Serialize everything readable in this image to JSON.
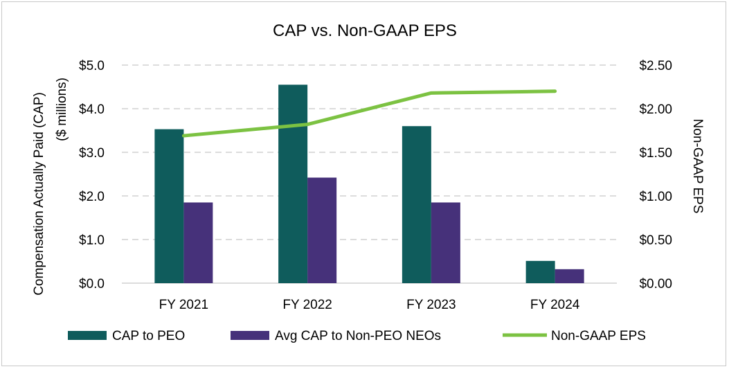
{
  "chart_data": {
    "type": "bar",
    "title": "CAP vs. Non-GAAP EPS",
    "categories": [
      "FY 2021",
      "FY 2022",
      "FY 2023",
      "FY 2024"
    ],
    "ylabel": "Compensation Actually Paid (CAP)",
    "ylabel_sub": "($ millions)",
    "y2label": "Non-GAAP EPS",
    "ylim": [
      0,
      5
    ],
    "y2lim": [
      0,
      2.5
    ],
    "yticks": [
      "$0.0",
      "$1.0",
      "$2.0",
      "$3.0",
      "$4.0",
      "$5.0"
    ],
    "y2ticks": [
      "$0.00",
      "$0.50",
      "$1.00",
      "$1.50",
      "$2.00",
      "$2.50"
    ],
    "grid": true,
    "legend_position": "bottom",
    "series": [
      {
        "name": "CAP to PEO",
        "kind": "bar",
        "axis": "left",
        "color": "#0f5c5c",
        "values": [
          3.53,
          4.55,
          3.6,
          0.51
        ]
      },
      {
        "name": "Avg CAP to Non-PEO NEOs",
        "kind": "bar",
        "axis": "left",
        "color": "#46317a",
        "values": [
          1.85,
          2.42,
          1.85,
          0.32
        ]
      },
      {
        "name": "Non-GAAP EPS",
        "kind": "line",
        "axis": "right",
        "color": "#7cc242",
        "values": [
          1.69,
          1.82,
          2.18,
          2.2
        ]
      }
    ]
  }
}
